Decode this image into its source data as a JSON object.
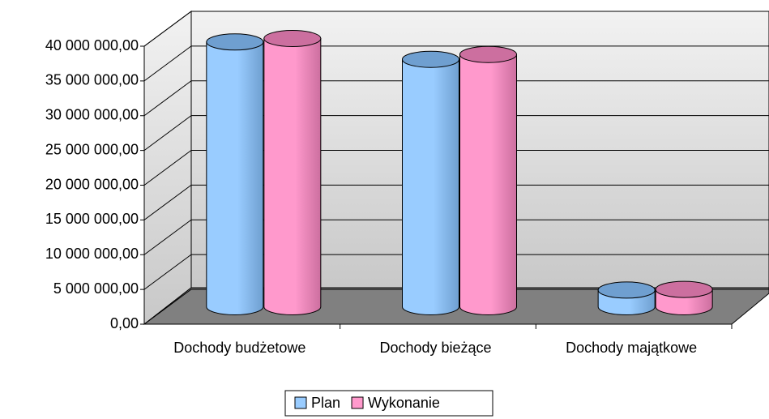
{
  "chart_data": {
    "type": "bar3d",
    "categories": [
      "Dochody budżetowe",
      "Dochody bieżące",
      "Dochody majątkowe"
    ],
    "series": [
      {
        "name": "Plan",
        "color": "#99ccff",
        "values": [
          38100000,
          35600000,
          2400000
        ]
      },
      {
        "name": "Wykonanie",
        "color": "#ff99cc",
        "values": [
          38600000,
          36300000,
          2500000
        ]
      }
    ],
    "ylim": [
      0,
      40000000
    ],
    "yticks": [
      {
        "value": 0,
        "label": "0,00"
      },
      {
        "value": 5000000,
        "label": "5 000 000,00"
      },
      {
        "value": 10000000,
        "label": "10 000 000,00"
      },
      {
        "value": 15000000,
        "label": "15 000 000,00"
      },
      {
        "value": 20000000,
        "label": "20 000 000,00"
      },
      {
        "value": 25000000,
        "label": "25 000 000,00"
      },
      {
        "value": 30000000,
        "label": "30 000 000,00"
      },
      {
        "value": 35000000,
        "label": "35 000 000,00"
      },
      {
        "value": 40000000,
        "label": "40 000 000,00"
      }
    ],
    "grid": true,
    "legend": "bottom"
  }
}
